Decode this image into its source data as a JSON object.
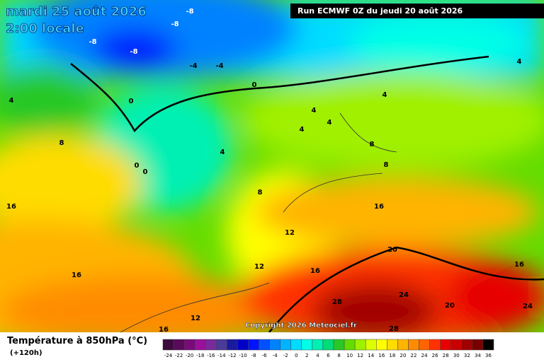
{
  "header": {
    "title": "mardi 25 août 2026",
    "time": "2:00 locale",
    "run": "Run ECMWF 0Z du jeudi 20 août 2026"
  },
  "map": {
    "copyright": "Copyright 2026 Meteociel.fr",
    "labels": [
      -8,
      -8,
      -8,
      -8,
      -4,
      -4,
      0,
      0,
      0,
      0,
      4,
      4,
      4,
      4,
      4,
      4,
      4,
      8,
      8,
      8,
      8,
      12,
      12,
      12,
      16,
      16,
      16,
      16,
      16,
      16,
      20,
      20,
      24,
      24,
      28,
      28
    ]
  },
  "colorbar": {
    "title": "Température à 850hPa (°C)",
    "subtitle": "(+120h)",
    "ticks": [
      -24,
      -22,
      -20,
      -18,
      -16,
      -14,
      -12,
      -10,
      -8,
      -6,
      -4,
      -2,
      0,
      2,
      4,
      6,
      8,
      10,
      12,
      14,
      16,
      18,
      20,
      22,
      24,
      26,
      28,
      30,
      32,
      34,
      36
    ],
    "colors": [
      "#3c0a3c",
      "#5a0a5a",
      "#7a0a7a",
      "#9a109a",
      "#7a2a9a",
      "#4a3a9a",
      "#1a1aa0",
      "#0000c8",
      "#0014ff",
      "#0050ff",
      "#0082ff",
      "#00b4ff",
      "#00dcff",
      "#00ffe6",
      "#00f0b4",
      "#00dc78",
      "#28c828",
      "#64dc00",
      "#a0f000",
      "#dcff00",
      "#ffff00",
      "#ffdc00",
      "#ffb400",
      "#ff8c00",
      "#ff6400",
      "#ff3200",
      "#e60000",
      "#c80000",
      "#a00000",
      "#780000",
      "#000000"
    ]
  }
}
